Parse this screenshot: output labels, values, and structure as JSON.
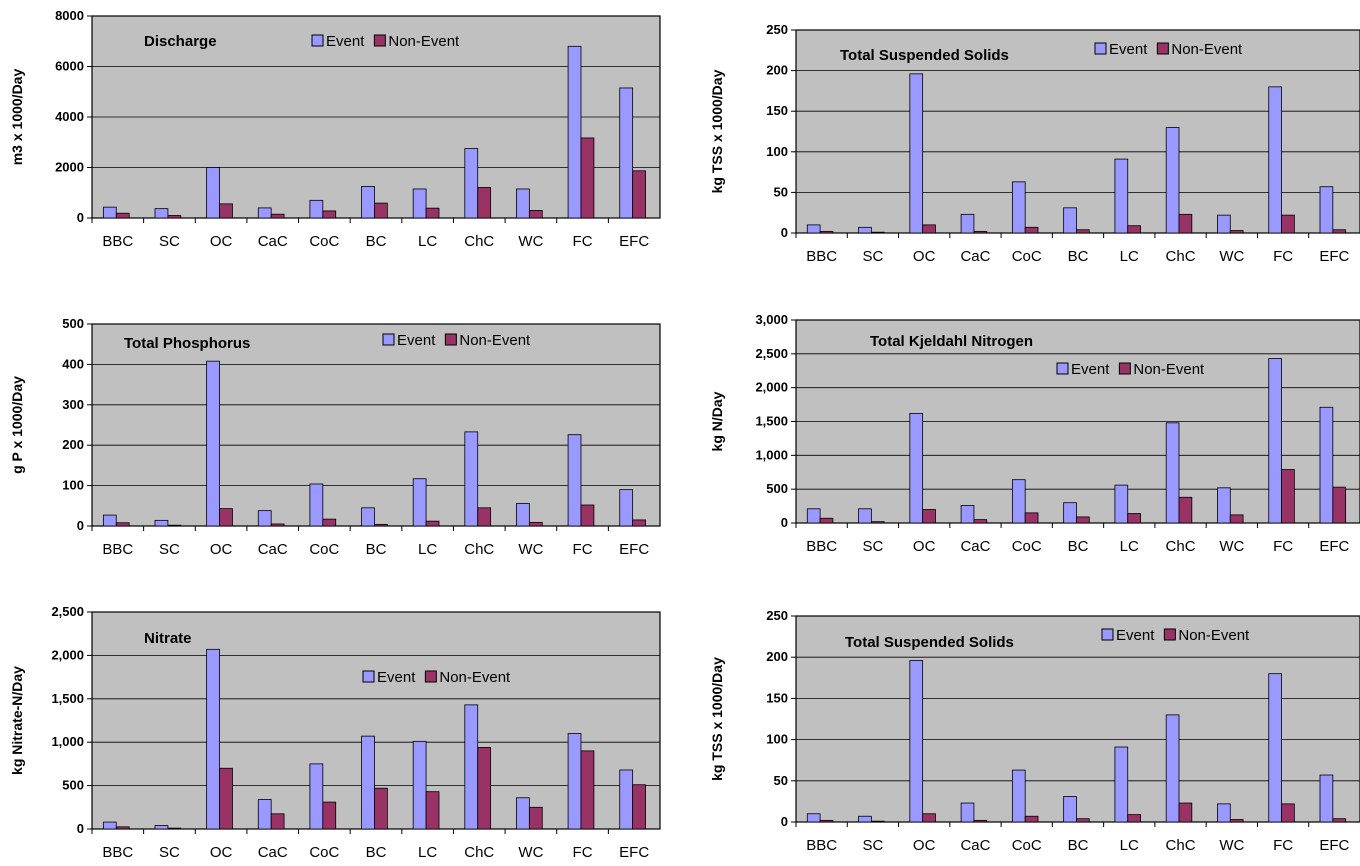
{
  "colors": {
    "event": "#9999FF",
    "nonevent": "#993366",
    "plot_bg": "#C0C0C0",
    "grid": "#000000"
  },
  "legend": {
    "event": "Event",
    "nonevent": "Non-Event"
  },
  "chart_data": [
    {
      "type": "bar",
      "title": "Discharge",
      "ylabel": "m3 x 1000/Day",
      "ylim": [
        0,
        8000
      ],
      "yticks": [
        "0",
        "2000",
        "4000",
        "6000",
        "8000"
      ],
      "categories": [
        "BBC",
        "SC",
        "OC",
        "CaC",
        "CoC",
        "BC",
        "LC",
        "ChC",
        "WC",
        "FC",
        "EFC"
      ],
      "series": [
        {
          "name": "Event",
          "values": [
            430,
            370,
            2000,
            400,
            700,
            1250,
            1150,
            2750,
            1150,
            6800,
            5150
          ]
        },
        {
          "name": "Non-Event",
          "values": [
            190,
            100,
            560,
            150,
            280,
            590,
            390,
            1210,
            300,
            3170,
            1870
          ]
        }
      ]
    },
    {
      "type": "bar",
      "title": "Total Suspended Solids",
      "ylabel": "kg TSS x 1000/Day",
      "ylim": [
        0,
        250
      ],
      "yticks": [
        "0",
        "50",
        "100",
        "150",
        "200",
        "250"
      ],
      "categories": [
        "BBC",
        "SC",
        "OC",
        "CaC",
        "CoC",
        "BC",
        "LC",
        "ChC",
        "WC",
        "FC",
        "EFC"
      ],
      "series": [
        {
          "name": "Event",
          "values": [
            10,
            7,
            196,
            23,
            63,
            31,
            91,
            130,
            22,
            180,
            57
          ]
        },
        {
          "name": "Non-Event",
          "values": [
            2,
            1,
            10,
            2,
            7,
            4,
            9,
            23,
            3,
            22,
            4
          ]
        }
      ]
    },
    {
      "type": "bar",
      "title": "Total Phosphorus",
      "ylabel": "g P x 1000/Day",
      "ylim": [
        0,
        500
      ],
      "yticks": [
        "0",
        "100",
        "200",
        "300",
        "400",
        "500"
      ],
      "categories": [
        "BBC",
        "SC",
        "OC",
        "CaC",
        "CoC",
        "BC",
        "LC",
        "ChC",
        "WC",
        "FC",
        "EFC"
      ],
      "series": [
        {
          "name": "Event",
          "values": [
            27,
            14,
            408,
            38,
            104,
            45,
            117,
            233,
            56,
            226,
            90
          ]
        },
        {
          "name": "Non-Event",
          "values": [
            8,
            2,
            43,
            5,
            17,
            4,
            12,
            45,
            9,
            52,
            15
          ]
        }
      ]
    },
    {
      "type": "bar",
      "title": "Total Kjeldahl Nitrogen",
      "ylabel": "kg N/Day",
      "ylim": [
        0,
        3000
      ],
      "yticks": [
        "0",
        "500",
        "1,000",
        "1,500",
        "2,000",
        "2,500",
        "3,000"
      ],
      "categories": [
        "BBC",
        "SC",
        "OC",
        "CaC",
        "CoC",
        "BC",
        "LC",
        "ChC",
        "WC",
        "FC",
        "EFC"
      ],
      "series": [
        {
          "name": "Event",
          "values": [
            210,
            210,
            1620,
            260,
            640,
            300,
            560,
            1480,
            520,
            2430,
            1710
          ]
        },
        {
          "name": "Non-Event",
          "values": [
            70,
            20,
            200,
            50,
            150,
            90,
            140,
            380,
            120,
            790,
            530
          ]
        }
      ]
    },
    {
      "type": "bar",
      "title": "Nitrate",
      "ylabel": "kg Nitrate-N/Day",
      "ylim": [
        0,
        2500
      ],
      "yticks": [
        "0",
        "500",
        "1,000",
        "1,500",
        "2,000",
        "2,500"
      ],
      "categories": [
        "BBC",
        "SC",
        "OC",
        "CaC",
        "CoC",
        "BC",
        "LC",
        "ChC",
        "WC",
        "FC",
        "EFC"
      ],
      "series": [
        {
          "name": "Event",
          "values": [
            80,
            40,
            2070,
            340,
            750,
            1070,
            1010,
            1430,
            360,
            1100,
            680
          ]
        },
        {
          "name": "Non-Event",
          "values": [
            25,
            10,
            700,
            175,
            310,
            470,
            430,
            940,
            250,
            900,
            510
          ]
        }
      ]
    },
    {
      "type": "bar",
      "title": "Total Suspended Solids",
      "ylabel": "kg TSS x 1000/Day",
      "ylim": [
        0,
        250
      ],
      "yticks": [
        "0",
        "50",
        "100",
        "150",
        "200",
        "250"
      ],
      "categories": [
        "BBC",
        "SC",
        "OC",
        "CaC",
        "CoC",
        "BC",
        "LC",
        "ChC",
        "WC",
        "FC",
        "EFC"
      ],
      "series": [
        {
          "name": "Event",
          "values": [
            10,
            7,
            196,
            23,
            63,
            31,
            91,
            130,
            22,
            180,
            57
          ]
        },
        {
          "name": "Non-Event",
          "values": [
            2,
            1,
            10,
            2,
            7,
            4,
            9,
            23,
            3,
            22,
            4
          ]
        }
      ]
    }
  ]
}
